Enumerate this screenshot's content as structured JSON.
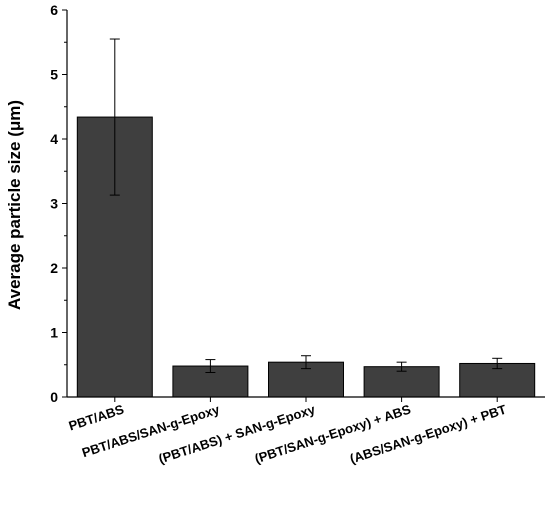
{
  "chart_data": {
    "type": "bar",
    "title": "",
    "xlabel": "",
    "ylabel": "Average particle size (μm)",
    "ylim": [
      0,
      6
    ],
    "yticks": [
      0,
      1,
      2,
      3,
      4,
      5,
      6
    ],
    "categories": [
      "PBT/ABS",
      "PBT/ABS/SAN-g-Epoxy",
      "(PBT/ABS) + SAN-g-Epoxy",
      "(PBT/SAN-g-Epoxy) + ABS",
      "(ABS/SAN-g-Epoxy) + PBT"
    ],
    "values": [
      4.34,
      0.48,
      0.54,
      0.47,
      0.52
    ],
    "errors": [
      1.21,
      0.1,
      0.1,
      0.07,
      0.08
    ],
    "bar_color": "#3f3f3f",
    "grid": false,
    "legend": "none"
  }
}
